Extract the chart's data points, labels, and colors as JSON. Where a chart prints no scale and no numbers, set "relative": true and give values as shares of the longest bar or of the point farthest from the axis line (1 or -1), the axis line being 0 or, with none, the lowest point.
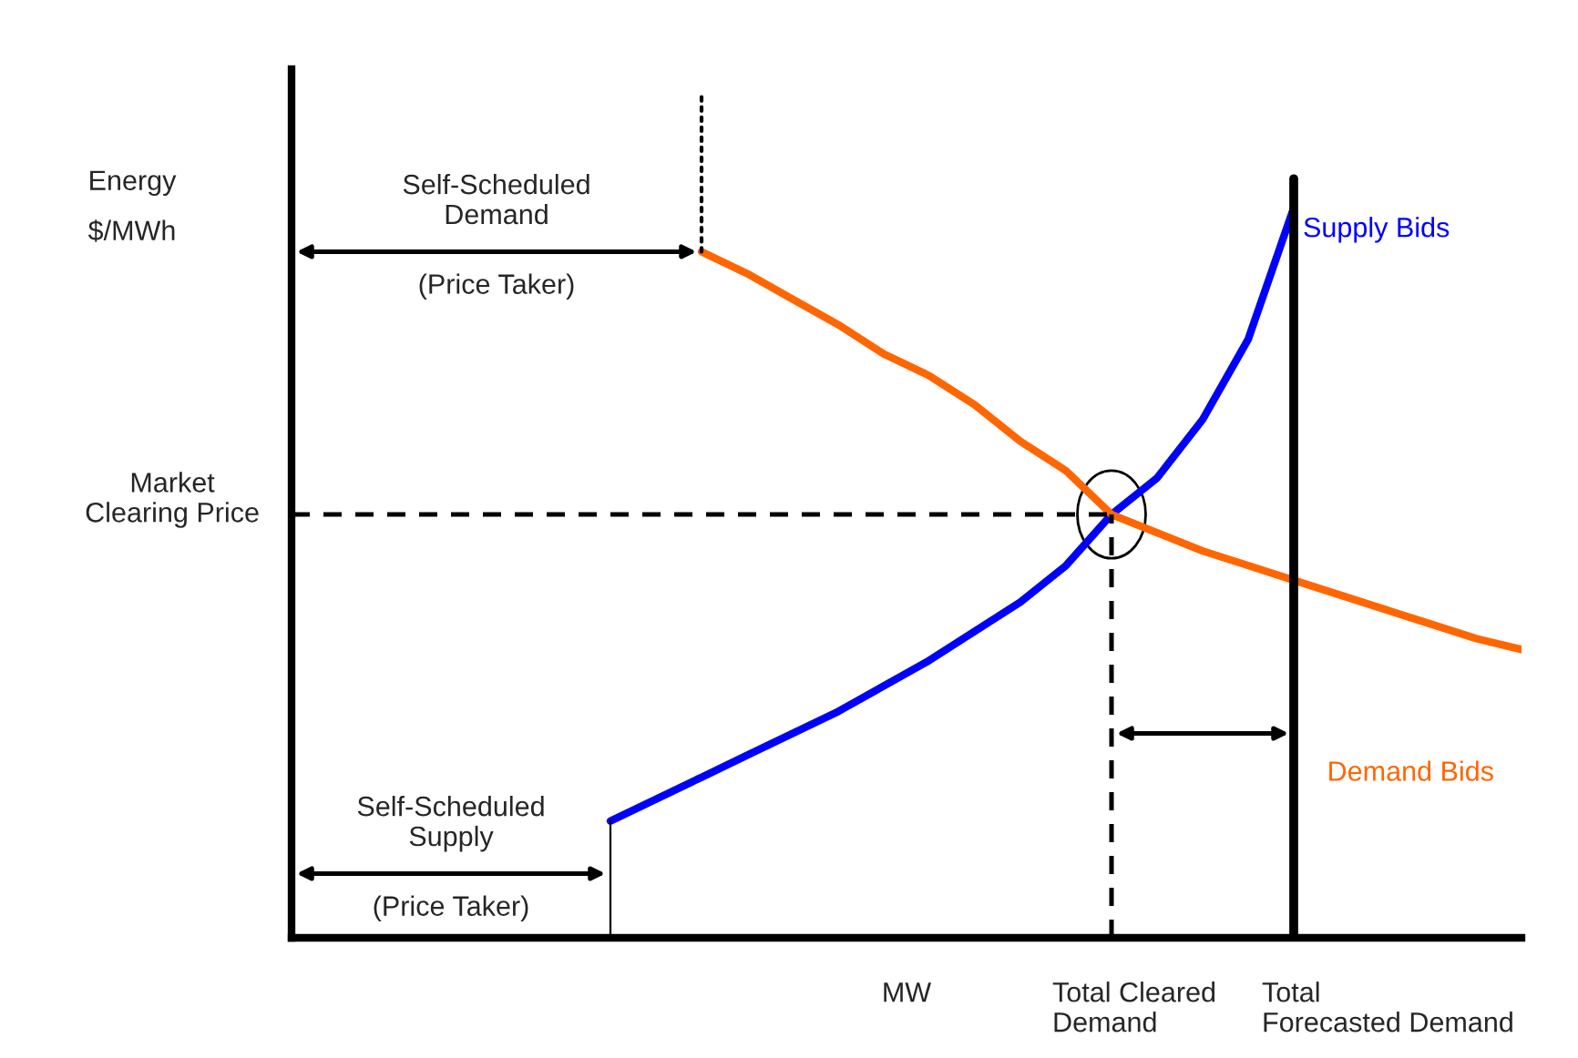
{
  "chart_data": {
    "type": "line",
    "relative": true,
    "xlabel": "MW",
    "ylabel": "Energy\n$/MWh",
    "categories": [
      null,
      null,
      null,
      null,
      null,
      null,
      null,
      null,
      null,
      null,
      null,
      null,
      null,
      null,
      null,
      null,
      null,
      null,
      null,
      null,
      null,
      null,
      null,
      null,
      null,
      null,
      null,
      null
    ],
    "series": [
      {
        "name": "Supply Bids",
        "color": "#0000ff",
        "values": [
          null,
          null,
          null,
          null,
          null,
          null,
          null,
          0.16,
          0.19,
          0.22,
          0.25,
          0.28,
          0.31,
          0.345,
          0.38,
          0.42,
          0.46,
          0.51,
          0.58,
          0.63,
          0.71,
          0.82,
          1.0,
          null,
          null,
          null,
          null,
          null
        ]
      },
      {
        "name": "Demand Bids",
        "color": "#ff6600",
        "values": [
          null,
          null,
          null,
          null,
          null,
          null,
          null,
          null,
          null,
          0.94,
          0.91,
          0.875,
          0.84,
          0.8,
          0.77,
          0.73,
          0.68,
          0.64,
          0.58,
          0.555,
          0.53,
          0.51,
          0.49,
          0.47,
          0.45,
          0.43,
          0.41,
          0.395
        ]
      }
    ],
    "ref_lines": [
      {
        "axis": "y",
        "value": 0.58,
        "label": "Market\nClearing Price",
        "line_style": "dashed",
        "color": "#000000"
      }
    ],
    "annotations": [
      "Self-Scheduled\nDemand\n(Price Taker)",
      "Self-Scheduled\nSupply\n(Price Taker)",
      "Total Cleared\nDemand",
      "Total\nForecasted Demand"
    ]
  }
}
